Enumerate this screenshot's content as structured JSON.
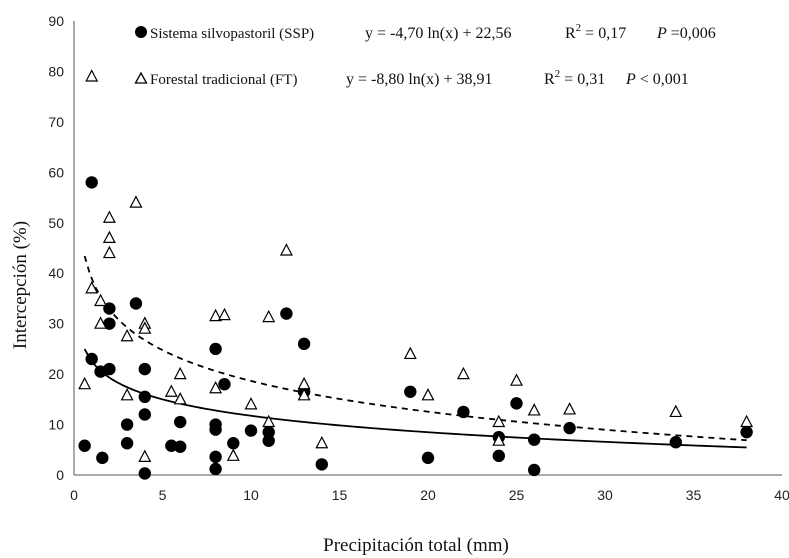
{
  "chart_data": {
    "type": "scatter",
    "xlabel": "Precipitación total (mm)",
    "ylabel": "Intercepción  (%)",
    "xlim": [
      0,
      40
    ],
    "ylim": [
      0,
      90
    ],
    "xticks": [
      "0",
      "5",
      "10",
      "15",
      "20",
      "25",
      "30",
      "35",
      "40"
    ],
    "yticks": [
      "0",
      "10",
      "20",
      "30",
      "40",
      "50",
      "60",
      "70",
      "80",
      "90"
    ],
    "grid": false,
    "legend_position": "top",
    "series": [
      {
        "name": "Sistema silvopastoril (SSP)",
        "marker": "filled-circle",
        "color": "#000000",
        "equation": "y = -4,70 ln(x) + 22,56",
        "r2_label": "R",
        "r2_exp": "2",
        "r2_value": " = 0,17",
        "p_label": "P",
        "p_value": " =0,006",
        "trend_style": "solid",
        "trend": {
          "a": -4.7,
          "b": 22.56,
          "x_start": 0.6,
          "x_end": 38
        },
        "points": [
          [
            0.6,
            5.8
          ],
          [
            1.0,
            58
          ],
          [
            1.0,
            23
          ],
          [
            1.5,
            20.5
          ],
          [
            1.6,
            3.4
          ],
          [
            2.0,
            33
          ],
          [
            2.0,
            30
          ],
          [
            2.0,
            21
          ],
          [
            3.0,
            10
          ],
          [
            3.0,
            6.3
          ],
          [
            3.5,
            34
          ],
          [
            4.0,
            21
          ],
          [
            4.0,
            15.5
          ],
          [
            4.0,
            12
          ],
          [
            4.0,
            0.3
          ],
          [
            5.5,
            5.8
          ],
          [
            6.0,
            10.5
          ],
          [
            6.0,
            5.6
          ],
          [
            8.0,
            25
          ],
          [
            8.0,
            10
          ],
          [
            8.0,
            9
          ],
          [
            8.0,
            3.6
          ],
          [
            8.0,
            1.2
          ],
          [
            8.5,
            18
          ],
          [
            9.0,
            6.3
          ],
          [
            10.0,
            8.8
          ],
          [
            11.0,
            8.5
          ],
          [
            11.0,
            6.8
          ],
          [
            12.0,
            32
          ],
          [
            13.0,
            26
          ],
          [
            13.0,
            16.5
          ],
          [
            14.0,
            2.1
          ],
          [
            19.0,
            16.5
          ],
          [
            20.0,
            3.4
          ],
          [
            22.0,
            12.5
          ],
          [
            24.0,
            7.5
          ],
          [
            24.0,
            3.8
          ],
          [
            25.0,
            14.2
          ],
          [
            26.0,
            7
          ],
          [
            26.0,
            1
          ],
          [
            28.0,
            9.3
          ],
          [
            34.0,
            6.5
          ],
          [
            38.0,
            8.5
          ]
        ]
      },
      {
        "name": "Forestal tradicional (FT)",
        "marker": "open-triangle",
        "color": "#000000",
        "equation": "y = -8,80 ln(x) + 38,91",
        "r2_label": "R",
        "r2_exp": "2",
        "r2_value": " = 0,31",
        "p_label": "P",
        "p_value": " < 0,001",
        "trend_style": "dashed",
        "trend": {
          "a": -8.8,
          "b": 38.91,
          "x_start": 0.6,
          "x_end": 38
        },
        "points": [
          [
            0.6,
            18
          ],
          [
            1.0,
            79
          ],
          [
            1.0,
            37
          ],
          [
            1.5,
            34.5
          ],
          [
            1.5,
            30
          ],
          [
            2.0,
            51
          ],
          [
            2.0,
            47
          ],
          [
            2.0,
            44
          ],
          [
            3.0,
            27.5
          ],
          [
            3.0,
            15.8
          ],
          [
            3.5,
            54
          ],
          [
            4.0,
            30
          ],
          [
            4.0,
            29
          ],
          [
            4.0,
            3.6
          ],
          [
            5.5,
            16.5
          ],
          [
            6.0,
            20
          ],
          [
            6.0,
            15
          ],
          [
            8.0,
            31.5
          ],
          [
            8.0,
            17.2
          ],
          [
            8.5,
            31.7
          ],
          [
            9.0,
            3.8
          ],
          [
            10.0,
            14
          ],
          [
            11.0,
            31.3
          ],
          [
            11.0,
            10.5
          ],
          [
            12.0,
            44.5
          ],
          [
            13.0,
            18
          ],
          [
            13.0,
            15.8
          ],
          [
            14.0,
            6.3
          ],
          [
            19.0,
            24
          ],
          [
            20.0,
            15.8
          ],
          [
            22.0,
            20
          ],
          [
            24.0,
            10.5
          ],
          [
            24.0,
            6.8
          ],
          [
            25.0,
            18.7
          ],
          [
            26.0,
            12.8
          ],
          [
            28.0,
            13
          ],
          [
            34.0,
            12.5
          ],
          [
            38.0,
            10.5
          ]
        ]
      }
    ]
  }
}
